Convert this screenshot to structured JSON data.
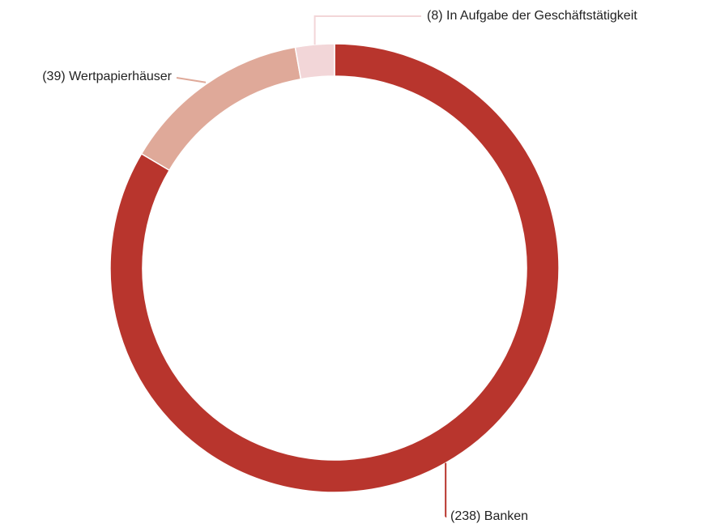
{
  "chart_data": {
    "type": "donut",
    "values": [
      238,
      39,
      8
    ],
    "value_labels": [
      "(238) Banken",
      "(39) Wertpapierhäuser",
      "(8) In Aufgabe der Geschäftstätigkeit"
    ],
    "colors": [
      "#b8352d",
      "#dfa999",
      "#f2d6d8"
    ]
  }
}
